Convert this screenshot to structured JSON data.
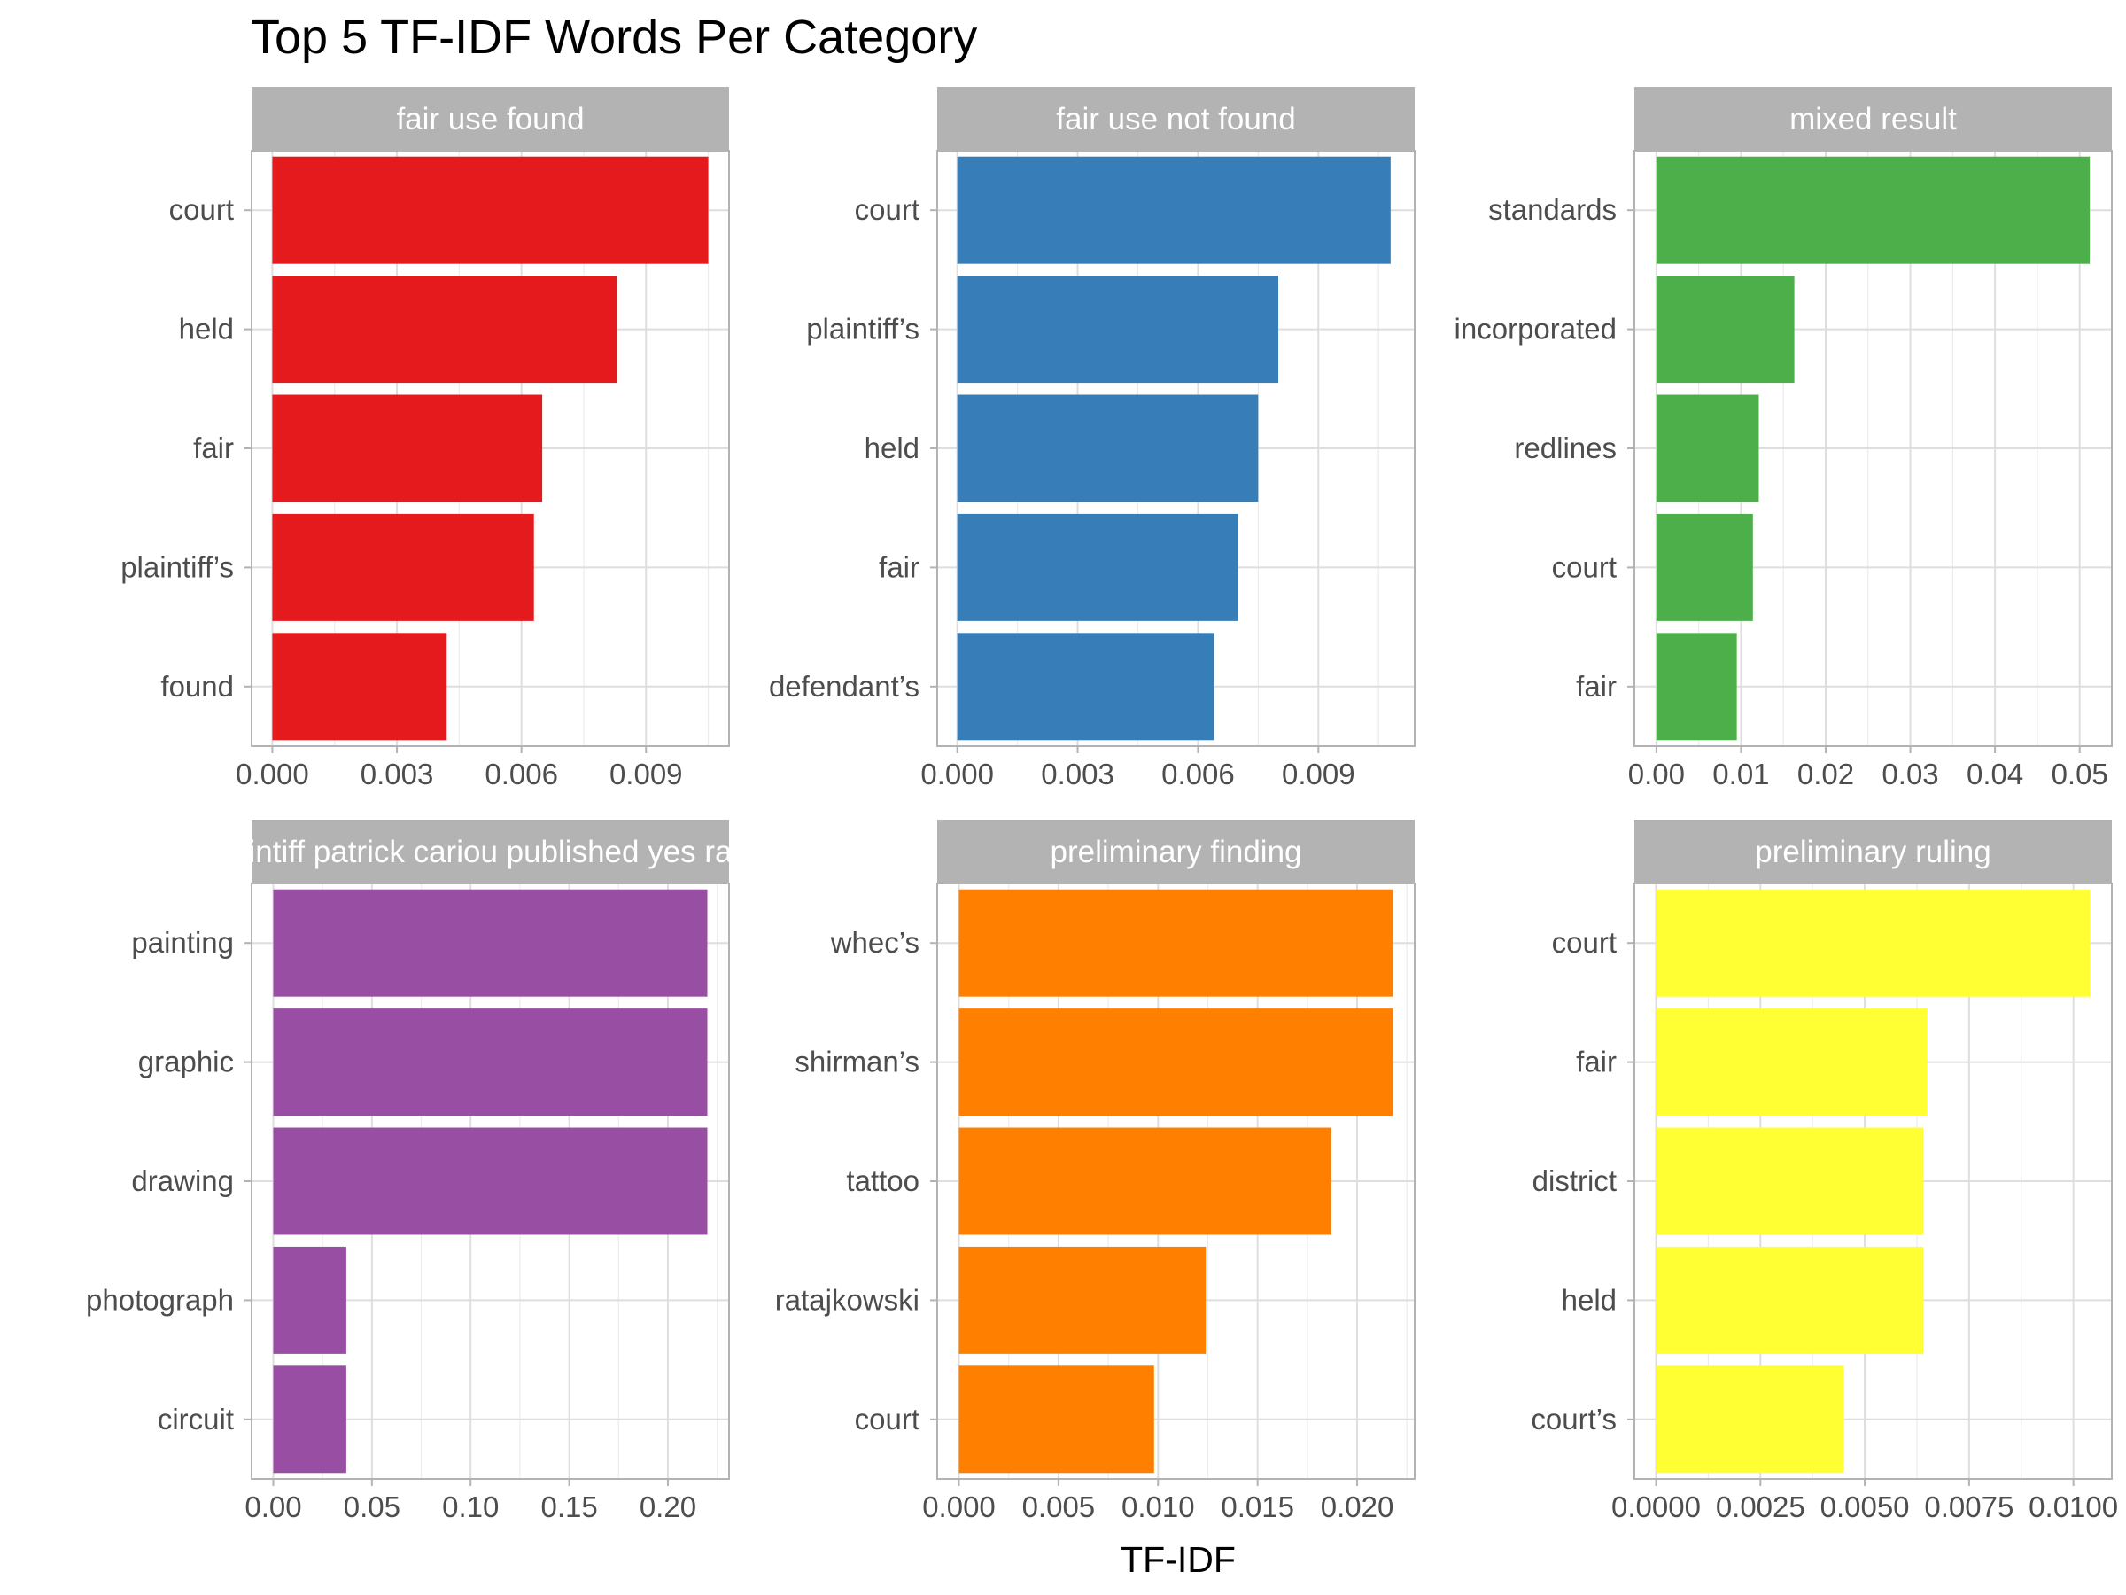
{
  "chart_data": {
    "type": "bar",
    "orientation": "horizontal",
    "title": "Top 5 TF-IDF Words Per Category",
    "xlabel": "TF-IDF",
    "grid": true,
    "panels": [
      {
        "label": "fair use found",
        "color": "#E41A1C",
        "categories": [
          "court",
          "held",
          "fair",
          "plaintiff’s",
          "found"
        ],
        "values": [
          0.0105,
          0.0083,
          0.0065,
          0.0063,
          0.0042
        ],
        "xlim": [
          -0.0005,
          0.011
        ],
        "ticks": [
          0,
          0.003,
          0.006,
          0.009
        ],
        "tick_labels": [
          "0.000",
          "0.003",
          "0.006",
          "0.009"
        ]
      },
      {
        "label": "fair use not found",
        "color": "#377EB8",
        "categories": [
          "court",
          "plaintiff’s",
          "held",
          "fair",
          "defendant’s"
        ],
        "values": [
          0.0108,
          0.008,
          0.0075,
          0.007,
          0.0064
        ],
        "xlim": [
          -0.0005,
          0.0114
        ],
        "ticks": [
          0,
          0.003,
          0.006,
          0.009
        ],
        "tick_labels": [
          "0.000",
          "0.003",
          "0.006",
          "0.009"
        ]
      },
      {
        "label": "mixed result",
        "color": "#4DAF4A",
        "categories": [
          "standards",
          "incorporated",
          "redlines",
          "court",
          "fair"
        ],
        "values": [
          0.0512,
          0.0163,
          0.0121,
          0.0114,
          0.0095
        ],
        "xlim": [
          -0.0026,
          0.0538
        ],
        "ticks": [
          0,
          0.01,
          0.02,
          0.03,
          0.04,
          0.05
        ],
        "tick_labels": [
          "0.00",
          "0.01",
          "0.02",
          "0.03",
          "0.04",
          "0.05"
        ]
      },
      {
        "label": "plaintiff patrick cariou published yes rasta",
        "color": "#984EA3",
        "categories": [
          "painting",
          "graphic",
          "drawing",
          "photograph",
          "circuit"
        ],
        "values": [
          0.22,
          0.22,
          0.22,
          0.037,
          0.037
        ],
        "xlim": [
          -0.011,
          0.231
        ],
        "ticks": [
          0,
          0.05,
          0.1,
          0.15,
          0.2
        ],
        "tick_labels": [
          "0.00",
          "0.05",
          "0.10",
          "0.15",
          "0.20"
        ]
      },
      {
        "label": "preliminary finding",
        "color": "#FF7F00",
        "categories": [
          "whec’s",
          "shirman’s",
          "tattoo",
          "ratajkowski",
          "court"
        ],
        "values": [
          0.0218,
          0.0218,
          0.0187,
          0.0124,
          0.0098
        ],
        "xlim": [
          -0.00109,
          0.02289
        ],
        "ticks": [
          0,
          0.005,
          0.01,
          0.015,
          0.02
        ],
        "tick_labels": [
          "0.000",
          "0.005",
          "0.010",
          "0.015",
          "0.020"
        ]
      },
      {
        "label": "preliminary ruling",
        "color": "#FFFF33",
        "categories": [
          "court",
          "fair",
          "district",
          "held",
          "court’s"
        ],
        "values": [
          0.0104,
          0.0065,
          0.0064,
          0.0064,
          0.0045
        ],
        "xlim": [
          -0.00052,
          0.01092
        ],
        "ticks": [
          0,
          0.0025,
          0.005,
          0.0075,
          0.01
        ],
        "tick_labels": [
          "0.0000",
          "0.0025",
          "0.0050",
          "0.0075",
          "0.0100"
        ]
      }
    ]
  }
}
